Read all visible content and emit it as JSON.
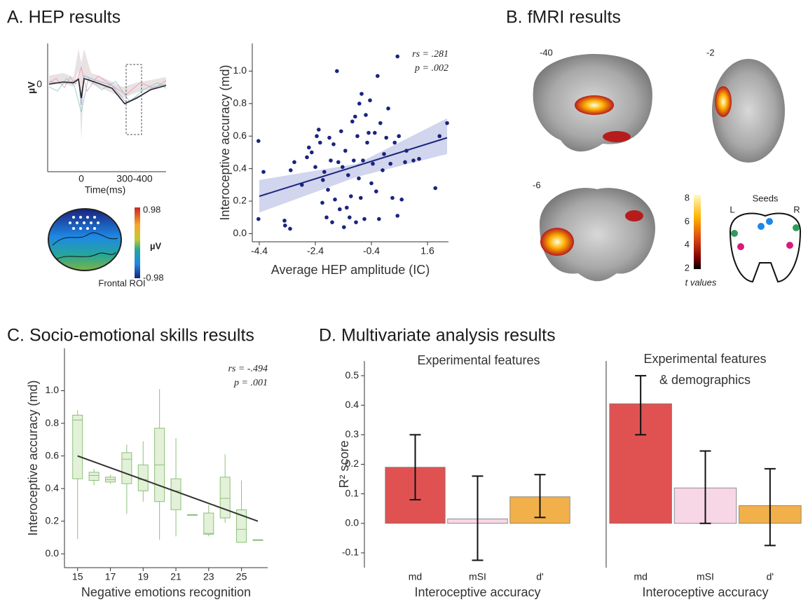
{
  "panel_titles": [
    "A. HEP results",
    "B. fMRI results",
    "C. Socio-emotional skills results",
    "D. Multivariate analysis results"
  ],
  "hep": {
    "ylabel": "µV",
    "y_zero": 0,
    "x_zero": 0,
    "window": "300-400",
    "xlabel": "Time(ms)",
    "topomap": {
      "lim": [
        -0.98,
        0.98
      ],
      "ticks": [
        0.98,
        -0.98
      ],
      "unit": "µV",
      "label": "Frontal ROI"
    }
  },
  "fmri": {
    "slices": [
      -40,
      -2,
      -6
    ],
    "colorbar": {
      "lim": [
        2,
        8
      ],
      "ticks": [
        2,
        4,
        6,
        8
      ],
      "label": "t values"
    },
    "seeds": {
      "title": "Seeds",
      "left": "L",
      "right": "R"
    }
  },
  "chart_data": [
    {
      "type": "scatter",
      "xlabel": "Average HEP amplitude (IC)",
      "ylabel": "Interoceptive accuracy (md)",
      "annotations": [
        "rs = .281",
        "p = .002"
      ],
      "color": "#1a237e",
      "x": [
        -4.43,
        -4.25,
        -4.43,
        -3.48,
        -3.3,
        -3.5,
        -3.28,
        -3.15,
        -2.88,
        -2.7,
        -2.63,
        -2.53,
        -2.4,
        -2.35,
        -2.28,
        -2.23,
        -2.15,
        -2.13,
        -2.08,
        -2.0,
        -1.95,
        -1.9,
        -1.85,
        -1.8,
        -1.75,
        -1.7,
        -1.63,
        -1.58,
        -1.53,
        -1.48,
        -1.43,
        -1.38,
        -1.33,
        -1.28,
        -1.23,
        -1.18,
        -1.13,
        -1.08,
        -1.03,
        -0.98,
        -0.95,
        -0.9,
        -0.85,
        -0.83,
        -0.78,
        -0.75,
        -0.7,
        -0.65,
        -0.6,
        -0.55,
        -0.5,
        -0.45,
        -0.4,
        -0.35,
        -0.28,
        -0.23,
        -0.18,
        -0.13,
        -0.08,
        0.0,
        0.05,
        0.13,
        0.2,
        0.28,
        0.35,
        0.43,
        0.53,
        0.53,
        0.58,
        0.68,
        0.8,
        0.85,
        1.1,
        1.3,
        1.88,
        2.03,
        2.3
      ],
      "y": [
        0.57,
        0.38,
        0.09,
        0.05,
        0.03,
        0.08,
        0.39,
        0.44,
        0.3,
        0.47,
        0.53,
        0.5,
        0.41,
        0.6,
        0.64,
        0.56,
        0.19,
        0.33,
        0.38,
        0.1,
        0.27,
        0.59,
        0.45,
        0.07,
        0.55,
        0.21,
        1.0,
        0.44,
        0.15,
        0.63,
        0.41,
        0.04,
        0.51,
        0.16,
        0.36,
        0.1,
        0.23,
        0.69,
        0.45,
        0.72,
        0.07,
        0.6,
        0.34,
        0.8,
        0.22,
        0.86,
        0.45,
        0.09,
        0.73,
        0.56,
        0.62,
        0.82,
        0.31,
        0.43,
        0.62,
        0.26,
        0.97,
        0.09,
        0.68,
        0.39,
        0.49,
        0.59,
        0.77,
        0.43,
        0.22,
        0.56,
        1.09,
        0.11,
        0.6,
        0.21,
        0.44,
        0.51,
        0.45,
        0.46,
        0.28,
        0.6,
        0.68
      ],
      "fit": {
        "x": [
          -4.4,
          2.3
        ],
        "y": [
          0.23,
          0.59
        ],
        "color": "#1a237e"
      },
      "band": {
        "x": [
          -4.4,
          -0.9,
          2.3
        ],
        "lower": [
          0.13,
          0.35,
          0.49
        ],
        "upper": [
          0.33,
          0.43,
          0.71
        ],
        "color": "#c5cae9"
      },
      "xlim": [
        -4.65,
        2.35
      ],
      "ylim": [
        -0.05,
        1.17
      ],
      "xticks": [
        -4.4,
        -2.4,
        -0.4,
        1.6
      ],
      "yticks": [
        {
          "value": 0,
          "label": "0.0"
        },
        0.2,
        0.4,
        0.6,
        0.8,
        {
          "value": 1,
          "label": "1.0"
        }
      ]
    },
    {
      "type": "box",
      "xlabel": "Negative emotions recognition",
      "ylabel": "Interoceptive accuracy (md)",
      "annotations": [
        "rs = -.494",
        "p = .001"
      ],
      "color": "#e3f1d8",
      "edge_color": "#8cc07a",
      "x": [
        15,
        16,
        17,
        18,
        19,
        20,
        21,
        22,
        23,
        24,
        25,
        26
      ],
      "min": [
        0.09,
        0.42,
        0.43,
        0.245,
        0.32,
        0.086,
        0.107,
        0.24,
        0.107,
        0.19,
        0.07,
        0.086
      ],
      "q1": [
        0.46,
        0.45,
        0.44,
        0.43,
        0.386,
        0.32,
        0.27,
        0.24,
        0.12,
        0.22,
        0.07,
        0.086
      ],
      "median": [
        0.82,
        0.48,
        0.455,
        0.58,
        0.455,
        0.545,
        0.386,
        0.24,
        0.125,
        0.34,
        0.15,
        0.086
      ],
      "q3": [
        0.85,
        0.5,
        0.47,
        0.62,
        0.545,
        0.77,
        0.46,
        0.24,
        0.25,
        0.47,
        0.27,
        0.086
      ],
      "max": [
        0.88,
        0.52,
        0.485,
        0.67,
        0.69,
        1.01,
        0.71,
        0.24,
        0.3,
        0.61,
        0.45,
        0.086
      ],
      "fit": {
        "x": [
          15,
          26
        ],
        "y": [
          0.6,
          0.2
        ],
        "color": "#333"
      },
      "xlim": [
        14.2,
        26.6
      ],
      "ylim": [
        -0.085,
        1.26
      ],
      "xticks": [
        15,
        17,
        19,
        21,
        23,
        25
      ],
      "yticks": [
        {
          "value": 0,
          "label": "0.0"
        },
        0.2,
        0.4,
        0.6,
        0.8,
        {
          "value": 1,
          "label": "1.0"
        }
      ]
    },
    {
      "type": "bar",
      "title": [
        "Experimental features"
      ],
      "xlabel": "Interoceptive accuracy",
      "ylabel": "R² score",
      "categories": [
        "md",
        "mSI",
        "d'"
      ],
      "values": [
        0.19,
        0.015,
        0.09
      ],
      "error_lower": [
        0.08,
        -0.125,
        0.02
      ],
      "error_upper": [
        0.3,
        0.16,
        0.165
      ],
      "colors": [
        "#e05252",
        "#f7d6e6",
        "#f2b04a"
      ],
      "ylim": [
        -0.15,
        0.55
      ],
      "yticks": [
        -0.1,
        {
          "value": 0,
          "label": "0.0"
        },
        0.1,
        0.2,
        0.3,
        0.4,
        0.5
      ]
    },
    {
      "type": "bar",
      "title": [
        "Experimental features",
        "& demographics"
      ],
      "xlabel": "Interoceptive accuracy",
      "categories": [
        "md",
        "mSI",
        "d'"
      ],
      "values": [
        0.405,
        0.12,
        0.06
      ],
      "error_lower": [
        0.3,
        0.0,
        -0.075
      ],
      "error_upper": [
        0.5,
        0.245,
        0.185
      ],
      "colors": [
        "#e05252",
        "#f7d6e6",
        "#f2b04a"
      ],
      "ylim": [
        -0.15,
        0.55
      ]
    }
  ]
}
